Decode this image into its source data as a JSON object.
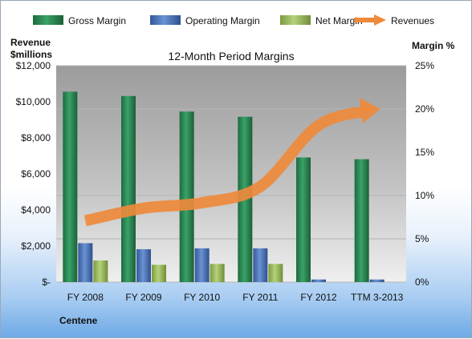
{
  "chart_data": {
    "type": "bar",
    "title": "12-Month Period Margins",
    "left_axis_title_line1": "Revenue",
    "left_axis_title_line2": "$millions",
    "right_axis_title": "Margin %",
    "company": "Centene",
    "categories": [
      "FY 2008",
      "FY 2009",
      "FY 2010",
      "FY 2011",
      "FY 2012",
      "TTM 3-2013"
    ],
    "left_ticks": [
      "$-",
      "$2,000",
      "$4,000",
      "$6,000",
      "$8,000",
      "$10,000",
      "$12,000"
    ],
    "right_ticks": [
      "0%",
      "5%",
      "10%",
      "15%",
      "20%",
      "25%"
    ],
    "ylim_left": [
      0,
      12000
    ],
    "ylim_right": [
      0,
      25
    ],
    "legend_position": "top",
    "series": [
      {
        "name": "Gross Margin",
        "axis": "right",
        "kind": "bar",
        "color": "#2e8b57",
        "values": [
          22.0,
          21.5,
          19.7,
          19.1,
          14.4,
          14.2
        ]
      },
      {
        "name": "Operating Margin",
        "axis": "right",
        "kind": "bar",
        "color": "#4f7ac1",
        "values": [
          4.5,
          3.8,
          3.9,
          3.9,
          0.3,
          0.3
        ]
      },
      {
        "name": "Net Margin",
        "axis": "right",
        "kind": "bar",
        "color": "#9bbb59",
        "values": [
          2.5,
          2.0,
          2.1,
          2.1,
          0.0,
          0.0
        ]
      },
      {
        "name": "Revenues",
        "axis": "left",
        "kind": "arrow",
        "color": "#ee8a3c",
        "values": [
          3400,
          4100,
          4400,
          5300,
          8700,
          9600
        ]
      }
    ]
  }
}
